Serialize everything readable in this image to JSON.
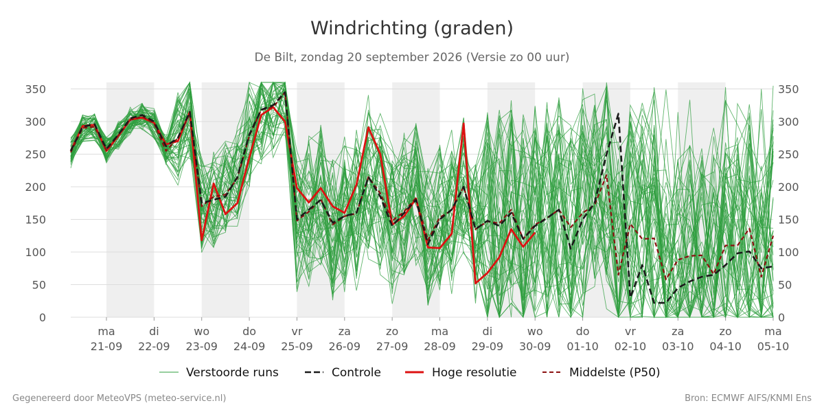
{
  "chart_data": {
    "type": "line",
    "title": "Windrichting (graden)",
    "subtitle": "De Bilt, zondag 20 september 2026 (Versie zo 00 uur)",
    "ylim": [
      0,
      360
    ],
    "yticks": [
      0,
      50,
      100,
      150,
      200,
      250,
      300,
      350
    ],
    "x_range_days": [
      -0.75,
      14
    ],
    "weekend_bands": [
      [
        0,
        1
      ],
      [
        2,
        3
      ],
      [
        4,
        5
      ],
      [
        6,
        7
      ],
      [
        8,
        9
      ],
      [
        10,
        11
      ],
      [
        12,
        13
      ]
    ],
    "x_ticks": [
      {
        "day": "ma",
        "date": "21-09"
      },
      {
        "day": "di",
        "date": "22-09"
      },
      {
        "day": "wo",
        "date": "23-09"
      },
      {
        "day": "do",
        "date": "24-09"
      },
      {
        "day": "vr",
        "date": "25-09"
      },
      {
        "day": "za",
        "date": "26-09"
      },
      {
        "day": "zo",
        "date": "27-09"
      },
      {
        "day": "ma",
        "date": "28-09"
      },
      {
        "day": "di",
        "date": "29-09"
      },
      {
        "day": "wo",
        "date": "30-09"
      },
      {
        "day": "do",
        "date": "01-10"
      },
      {
        "day": "vr",
        "date": "02-10"
      },
      {
        "day": "za",
        "date": "03-10"
      },
      {
        "day": "zo",
        "date": "04-10"
      },
      {
        "day": "ma",
        "date": "05-10"
      }
    ],
    "colors": {
      "ensemble": "#2e9e3e",
      "control": "#1a1a1a",
      "hires": "#dd1111",
      "p50": "#8b1010",
      "band": "#efefef",
      "grid": "#dddddd"
    },
    "ensemble_members": 50,
    "series": [
      {
        "name": "Controle",
        "step_days": 0.25,
        "start_day": -0.75,
        "values": [
          255,
          292,
          296,
          258,
          280,
          305,
          310,
          300,
          262,
          275,
          315,
          175,
          180,
          185,
          215,
          280,
          318,
          325,
          345,
          150,
          165,
          180,
          145,
          155,
          160,
          215,
          185,
          140,
          160,
          180,
          112,
          150,
          165,
          200,
          135,
          148,
          140,
          160,
          120,
          140,
          152,
          165,
          105,
          150,
          175,
          250,
          312,
          30,
          80,
          22,
          22,
          45,
          55,
          62,
          65,
          80,
          98,
          101,
          75,
          78
        ]
      },
      {
        "name": "Hoge resolutie",
        "step_days": 0.25,
        "start_day": -0.75,
        "values": [
          255,
          293,
          295,
          255,
          278,
          303,
          306,
          298,
          265,
          270,
          315,
          118,
          205,
          158,
          175,
          245,
          310,
          322,
          300,
          198,
          176,
          198,
          170,
          160,
          203,
          291,
          250,
          142,
          155,
          182,
          107,
          106,
          128,
          297,
          52,
          68,
          92,
          135,
          108,
          130
        ]
      },
      {
        "name": "Middelste (P50)",
        "step_days": 0.25,
        "start_day": -0.75,
        "values": [
          253,
          290,
          292,
          256,
          279,
          302,
          308,
          297,
          255,
          275,
          312,
          170,
          185,
          188,
          213,
          278,
          318,
          322,
          345,
          148,
          162,
          181,
          142,
          155,
          159,
          215,
          190,
          148,
          162,
          183,
          118,
          153,
          164,
          200,
          135,
          147,
          144,
          165,
          120,
          142,
          152,
          165,
          138,
          160,
          172,
          218,
          65,
          143,
          120,
          121,
          58,
          88,
          94,
          95,
          66,
          110,
          110,
          136,
          62,
          125
        ]
      }
    ],
    "legend": [
      {
        "label": "Verstoorde runs"
      },
      {
        "label": "Controle"
      },
      {
        "label": "Hoge resolutie"
      },
      {
        "label": "Middelste (P50)"
      }
    ]
  },
  "footer": {
    "left": "Gegenereerd door MeteoVPS (meteo-service.nl)",
    "right": "Bron: ECMWF AIFS/KNMI Ens"
  }
}
